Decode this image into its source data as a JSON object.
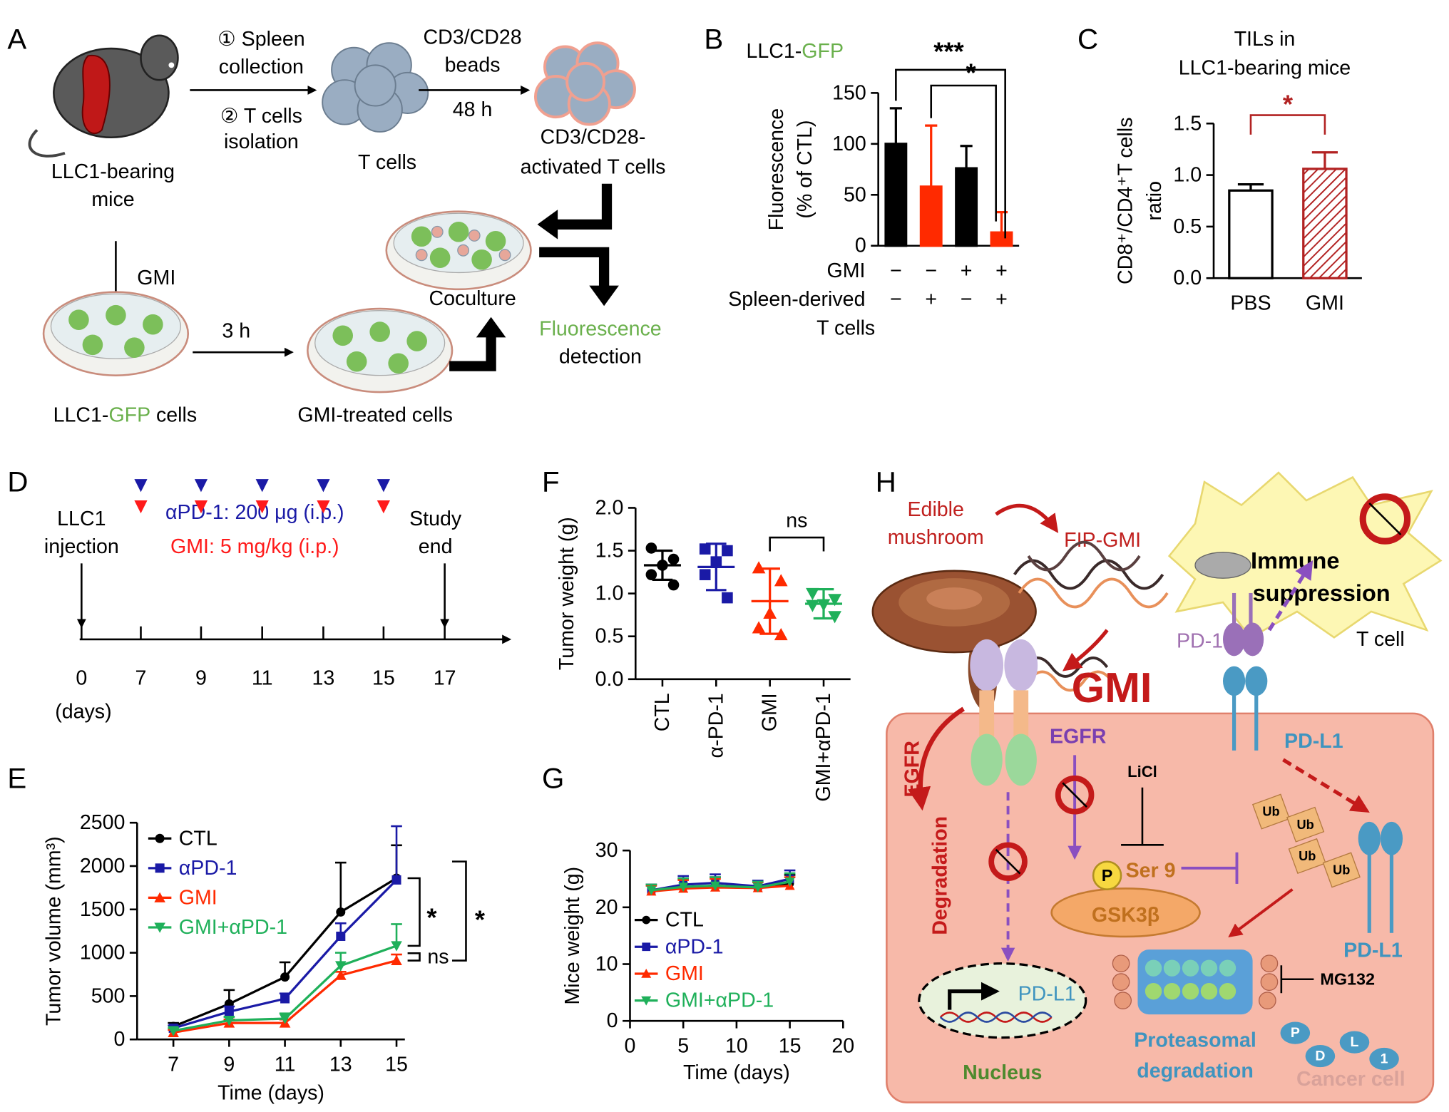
{
  "panel_labels": [
    "A",
    "B",
    "C",
    "D",
    "E",
    "F",
    "G",
    "H"
  ],
  "panel_a": {
    "mouse": [
      "LLC1-bearing",
      "mice"
    ],
    "step1": [
      "① Spleen",
      "collection"
    ],
    "step2": [
      "② T cells",
      "isolation"
    ],
    "t_cells": "T cells",
    "beads": [
      "CD3/CD28",
      "beads",
      "48 h"
    ],
    "activated": [
      "CD3/CD28-",
      "activated T cells"
    ],
    "coculture": "Coculture",
    "gmi": "GMI",
    "time": "3 h",
    "cells": [
      "LLC1-",
      "GFP",
      "cells"
    ],
    "treated": "GMI-treated cells",
    "detection": [
      "Fluorescence",
      "detection"
    ]
  },
  "panel_d": {
    "injection": [
      "LLC1",
      "injection"
    ],
    "apd1": "αPD-1: 200 μg (i.p.)",
    "gmi": "GMI: 5 mg/kg (i.p.)",
    "end": [
      "Study",
      "end"
    ],
    "days": [
      0,
      7,
      9,
      11,
      13,
      15,
      17
    ],
    "unit": "(days)",
    "apd1_color": "#1a1aa6",
    "gmi_color": "#ff1a1a"
  },
  "panel_h": {
    "edible": [
      "Edible",
      "mushroom"
    ],
    "fip": "FIP-GMI",
    "immune": [
      "Immune",
      "suppression"
    ],
    "pd1": "PD-1",
    "tcell": "T cell",
    "gmi": "GMI",
    "egfr": "EGFR",
    "licl": "LiCl",
    "pdl1_membrane": "PD-L1",
    "degradation": [
      "EGFR",
      "Degradation"
    ],
    "p": "P",
    "ser": "Ser 9",
    "gsk": "GSK3β",
    "ub": [
      "Ub",
      "Ub",
      "Ub",
      "Ub"
    ],
    "pdl1_right": "PD-L1",
    "mg132": "MG132",
    "pdl1_nucleus": "PD-L1",
    "nucleus": "Nucleus",
    "proteasomal": [
      "Proteasomal",
      "degradation"
    ],
    "cancer": "Cancer cell",
    "fragments": [
      "P",
      "D",
      "L",
      "1"
    ]
  },
  "chart_data": [
    {
      "type": "bar",
      "title": [
        "LLC1-",
        "GFP"
      ],
      "title_highlight_color": "#6ab04c",
      "ylabel": [
        "Fluorescence",
        "(% of CTL)"
      ],
      "values": [
        100,
        58,
        76,
        13
      ],
      "errors": [
        35,
        60,
        22,
        20
      ],
      "colors": [
        "#000000",
        "#ff2a00",
        "#000000",
        "#ff2a00"
      ],
      "rows": [
        {
          "name": "GMI",
          "signs": [
            "−",
            "−",
            "+",
            "+"
          ]
        },
        {
          "name": "Spleen-derived",
          "signs": [
            "−",
            "+",
            "−",
            "+"
          ]
        }
      ],
      "row_suffix": "T cells",
      "ylim": [
        0,
        150
      ],
      "yticks": [
        0,
        50,
        100,
        150
      ],
      "annotations": [
        "***",
        "*"
      ],
      "annotation_color": "#000000"
    },
    {
      "type": "bar",
      "title": [
        "TILs in",
        "LLC1-bearing mice"
      ],
      "ylabel": [
        "CD8⁺/CD4⁺T cells",
        "ratio"
      ],
      "categories": [
        "PBS",
        "GMI"
      ],
      "values": [
        0.85,
        1.06
      ],
      "errors": [
        0.06,
        0.16
      ],
      "colors": [
        "#ffffff",
        "#b22222"
      ],
      "hatched": [
        false,
        true
      ],
      "ylim": [
        0,
        1.5
      ],
      "yticks": [
        {
          "value": 0,
          "label": "0.0"
        },
        0.5,
        {
          "value": 1,
          "label": "1.0"
        },
        1.5
      ],
      "annotations": [
        "*"
      ],
      "annotation_color": "#b22222"
    },
    {
      "type": "line",
      "ylabel": "Tumor volume (mm³)",
      "xlabel": "Time (days)",
      "x": [
        7,
        9,
        11,
        13,
        15
      ],
      "xlim": [
        5.7,
        15.3
      ],
      "xticks": [
        7,
        9,
        11,
        13,
        15
      ],
      "ylim": [
        0,
        2500
      ],
      "yticks": [
        0,
        500,
        1000,
        1500,
        2000,
        2500
      ],
      "series": [
        {
          "name": "CTL",
          "color": "#000000",
          "marker": "circle",
          "values": [
            150,
            410,
            720,
            1470,
            1860
          ],
          "errors": [
            40,
            160,
            170,
            570,
            380
          ]
        },
        {
          "name": "αPD-1",
          "color": "#1a1aa6",
          "marker": "square",
          "values": [
            130,
            320,
            470,
            1190,
            1840
          ],
          "errors": [
            30,
            60,
            60,
            150,
            620
          ]
        },
        {
          "name": "GMI",
          "color": "#ff2a00",
          "marker": "triangle",
          "values": [
            80,
            190,
            190,
            740,
            910
          ],
          "errors": [
            30,
            40,
            40,
            40,
            70
          ]
        },
        {
          "name": "GMI+αPD-1",
          "color": "#1fb05a",
          "marker": "triangle-down",
          "values": [
            100,
            220,
            240,
            850,
            1080
          ],
          "errors": [
            30,
            40,
            60,
            150,
            250
          ]
        }
      ],
      "legend": "upper left",
      "annotations": [
        "*",
        "ns",
        "*"
      ]
    },
    {
      "type": "dot",
      "ylabel": "Tumor weight (g)",
      "categories": [
        "CTL",
        "α-PD-1",
        "GMI",
        "GMI+αPD-1"
      ],
      "colors": [
        "#000000",
        "#1a1aa6",
        "#ff2a00",
        "#1fb05a"
      ],
      "markers": [
        "circle",
        "square",
        "triangle",
        "triangle-down"
      ],
      "points": [
        [
          1.53,
          1.4,
          1.33,
          1.22,
          1.1
        ],
        [
          1.52,
          1.5,
          1.37,
          1.22,
          0.95
        ],
        [
          1.3,
          1.15,
          0.77,
          0.6,
          0.52
        ],
        [
          1.0,
          0.93,
          0.87,
          0.86,
          0.73
        ]
      ],
      "means": [
        1.33,
        1.31,
        0.91,
        0.88
      ],
      "sds": [
        0.17,
        0.27,
        0.38,
        0.17
      ],
      "ylim": [
        0,
        2.0
      ],
      "yticks": [
        {
          "value": 0,
          "label": "0.0"
        },
        0.5,
        {
          "value": 1,
          "label": "1.0"
        },
        1.5,
        {
          "value": 2,
          "label": "2.0"
        }
      ],
      "annotations": [
        "ns"
      ]
    },
    {
      "type": "line",
      "ylabel": "Mice weight (g)",
      "xlabel": "Time (days)",
      "x": [
        2,
        5,
        8,
        12,
        15
      ],
      "xlim": [
        0,
        20
      ],
      "xticks": [
        0,
        5,
        10,
        15,
        20
      ],
      "ylim": [
        0,
        30
      ],
      "yticks": [
        0,
        10,
        20,
        30
      ],
      "series": [
        {
          "name": "CTL",
          "color": "#000000",
          "marker": "circle",
          "values": [
            23,
            23.5,
            23.8,
            23.5,
            24.2
          ],
          "errors": [
            1,
            1.5,
            1.5,
            1,
            1.5
          ]
        },
        {
          "name": "αPD-1",
          "color": "#1a1aa6",
          "marker": "square",
          "values": [
            23,
            24,
            24.3,
            23.7,
            25
          ],
          "errors": [
            1,
            1.5,
            1.5,
            1,
            1.5
          ]
        },
        {
          "name": "GMI",
          "color": "#ff2a00",
          "marker": "triangle",
          "values": [
            22.8,
            23.3,
            23.5,
            23.4,
            23.8
          ],
          "errors": [
            1,
            1.5,
            1.5,
            1,
            1.5
          ]
        },
        {
          "name": "GMI+αPD-1",
          "color": "#1fb05a",
          "marker": "triangle-down",
          "values": [
            23,
            23.6,
            23.8,
            23.5,
            24.5
          ],
          "errors": [
            1,
            1.5,
            1.5,
            1,
            1.5
          ]
        }
      ],
      "legend": "lower left"
    }
  ]
}
